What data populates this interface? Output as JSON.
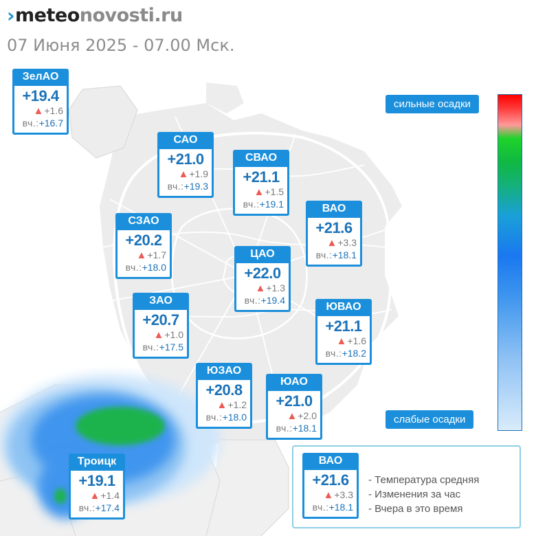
{
  "header": {
    "logo_mark": "›",
    "logo_part1": "meteo",
    "logo_part2": "novosti.ru",
    "datetime": "07 Июня 2025 - 07.00 Мск."
  },
  "precip_scale": {
    "top_label": "сильные осадки",
    "bottom_label": "слабые осадки",
    "colors": [
      "#ff0000",
      "#ff9999",
      "#1ed32a",
      "#14b07a",
      "#1a78f0",
      "#8cc0f4",
      "#d9ecfb"
    ]
  },
  "districts": [
    {
      "name": "ЗелАО",
      "temp": "+19.4",
      "change": "+1.6",
      "yesterday_prefix": "вч.:",
      "yesterday": "+16.7"
    },
    {
      "name": "САО",
      "temp": "+21.0",
      "change": "+1.9",
      "yesterday_prefix": "вч.:",
      "yesterday": "+19.3"
    },
    {
      "name": "СВАО",
      "temp": "+21.1",
      "change": "+1.5",
      "yesterday_prefix": "вч.:",
      "yesterday": "+19.1"
    },
    {
      "name": "ВАО",
      "temp": "+21.6",
      "change": "+3.3",
      "yesterday_prefix": "вч.:",
      "yesterday": "+18.1"
    },
    {
      "name": "СЗАО",
      "temp": "+20.2",
      "change": "+1.7",
      "yesterday_prefix": "вч.:",
      "yesterday": "+18.0"
    },
    {
      "name": "ЦАО",
      "temp": "+22.0",
      "change": "+1.3",
      "yesterday_prefix": "вч.:",
      "yesterday": "+19.4"
    },
    {
      "name": "ЗАО",
      "temp": "+20.7",
      "change": "+1.0",
      "yesterday_prefix": "вч.:",
      "yesterday": "+17.5"
    },
    {
      "name": "ЮВАО",
      "temp": "+21.1",
      "change": "+1.6",
      "yesterday_prefix": "вч.:",
      "yesterday": "+18.2"
    },
    {
      "name": "ЮЗАО",
      "temp": "+20.8",
      "change": "+1.2",
      "yesterday_prefix": "вч.:",
      "yesterday": "+18.0"
    },
    {
      "name": "ЮАО",
      "temp": "+21.0",
      "change": "+2.0",
      "yesterday_prefix": "вч.:",
      "yesterday": "+18.1"
    },
    {
      "name": "Троицк",
      "temp": "+19.1",
      "change": "+1.4",
      "yesterday_prefix": "вч.:",
      "yesterday": "+17.4"
    }
  ],
  "legend": {
    "example": {
      "name": "ВАО",
      "temp": "+21.6",
      "change": "+3.3",
      "yesterday_prefix": "вч.:",
      "yesterday": "+18.1"
    },
    "lines": [
      "- Температура средняя",
      "- Изменения за час",
      "- Вчера в это время"
    ]
  },
  "colors": {
    "card_header": "#1b8fdb",
    "temp_text": "#1b72b8",
    "change_arrow": "#ee5a54",
    "legend_border": "#8ccfe6"
  }
}
